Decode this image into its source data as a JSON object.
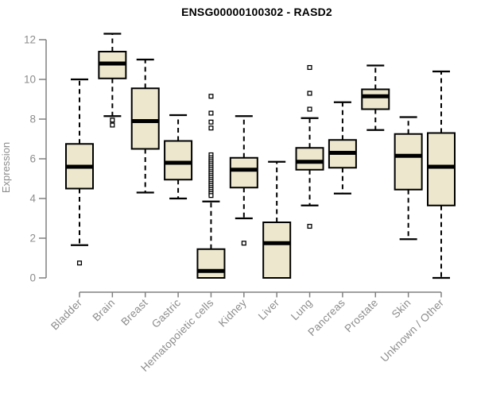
{
  "chart_data": {
    "type": "box",
    "title": "ENSG00000100302 - RASD2",
    "ylabel": "Expression",
    "xlabel": "",
    "ylim": [
      0,
      12
    ],
    "yticks": [
      0,
      2,
      4,
      6,
      8,
      10,
      12
    ],
    "grid": false,
    "legend_position": "none",
    "categories": [
      "Bladder",
      "Brain",
      "Breast",
      "Gastric",
      "Hematopoietic cells",
      "Kidney",
      "Liver",
      "Lung",
      "Pancreas",
      "Prostate",
      "Skin",
      "Unknown / Other"
    ],
    "boxes": [
      {
        "category": "Bladder",
        "whisker_low": 1.65,
        "q1": 4.5,
        "median": 5.6,
        "q3": 6.75,
        "whisker_high": 10.0,
        "outliers": [
          0.75
        ]
      },
      {
        "category": "Brain",
        "whisker_low": 8.15,
        "q1": 10.05,
        "median": 10.8,
        "q3": 11.4,
        "whisker_high": 12.3,
        "outliers": [
          7.95,
          7.7
        ]
      },
      {
        "category": "Breast",
        "whisker_low": 4.3,
        "q1": 6.5,
        "median": 7.9,
        "q3": 9.55,
        "whisker_high": 11.0,
        "outliers": []
      },
      {
        "category": "Gastric",
        "whisker_low": 4.0,
        "q1": 4.95,
        "median": 5.8,
        "q3": 6.9,
        "whisker_high": 8.2,
        "outliers": []
      },
      {
        "category": "Hematopoietic cells",
        "whisker_low": 0.0,
        "q1": 0.0,
        "median": 0.35,
        "q3": 1.45,
        "whisker_high": 3.85,
        "outliers": [
          9.15,
          8.3,
          7.85,
          7.55,
          6.2,
          6.05,
          5.95,
          5.85,
          5.75,
          5.65,
          5.55,
          5.45,
          5.35,
          5.25,
          5.15,
          5.05,
          4.95,
          4.85,
          4.75,
          4.65,
          4.55,
          4.45,
          4.35,
          4.25,
          4.15
        ]
      },
      {
        "category": "Kidney",
        "whisker_low": 3.0,
        "q1": 4.55,
        "median": 5.45,
        "q3": 6.05,
        "whisker_high": 8.15,
        "outliers": [
          1.75
        ]
      },
      {
        "category": "Liver",
        "whisker_low": 0.0,
        "q1": 0.0,
        "median": 1.75,
        "q3": 2.8,
        "whisker_high": 5.85,
        "outliers": []
      },
      {
        "category": "Lung",
        "whisker_low": 3.65,
        "q1": 5.45,
        "median": 5.85,
        "q3": 6.55,
        "whisker_high": 8.05,
        "outliers": [
          10.6,
          9.3,
          8.5,
          2.6
        ]
      },
      {
        "category": "Pancreas",
        "whisker_low": 4.25,
        "q1": 5.55,
        "median": 6.3,
        "q3": 6.95,
        "whisker_high": 8.85,
        "outliers": []
      },
      {
        "category": "Prostate",
        "whisker_low": 7.45,
        "q1": 8.5,
        "median": 9.15,
        "q3": 9.5,
        "whisker_high": 10.7,
        "outliers": []
      },
      {
        "category": "Skin",
        "whisker_low": 1.95,
        "q1": 4.45,
        "median": 6.15,
        "q3": 7.25,
        "whisker_high": 8.1,
        "outliers": []
      },
      {
        "category": "Unknown / Other",
        "whisker_low": 0.0,
        "q1": 3.65,
        "median": 5.6,
        "q3": 7.3,
        "whisker_high": 10.4,
        "outliers": []
      }
    ],
    "colors": {
      "box_fill": "#EDE8CD",
      "box_stroke": "#000000",
      "median": "#000000",
      "whisker": "#000000",
      "outlier_stroke": "#000000",
      "axis": "#808080",
      "tick_label": "#8C8C8C",
      "title": "#000000"
    }
  }
}
